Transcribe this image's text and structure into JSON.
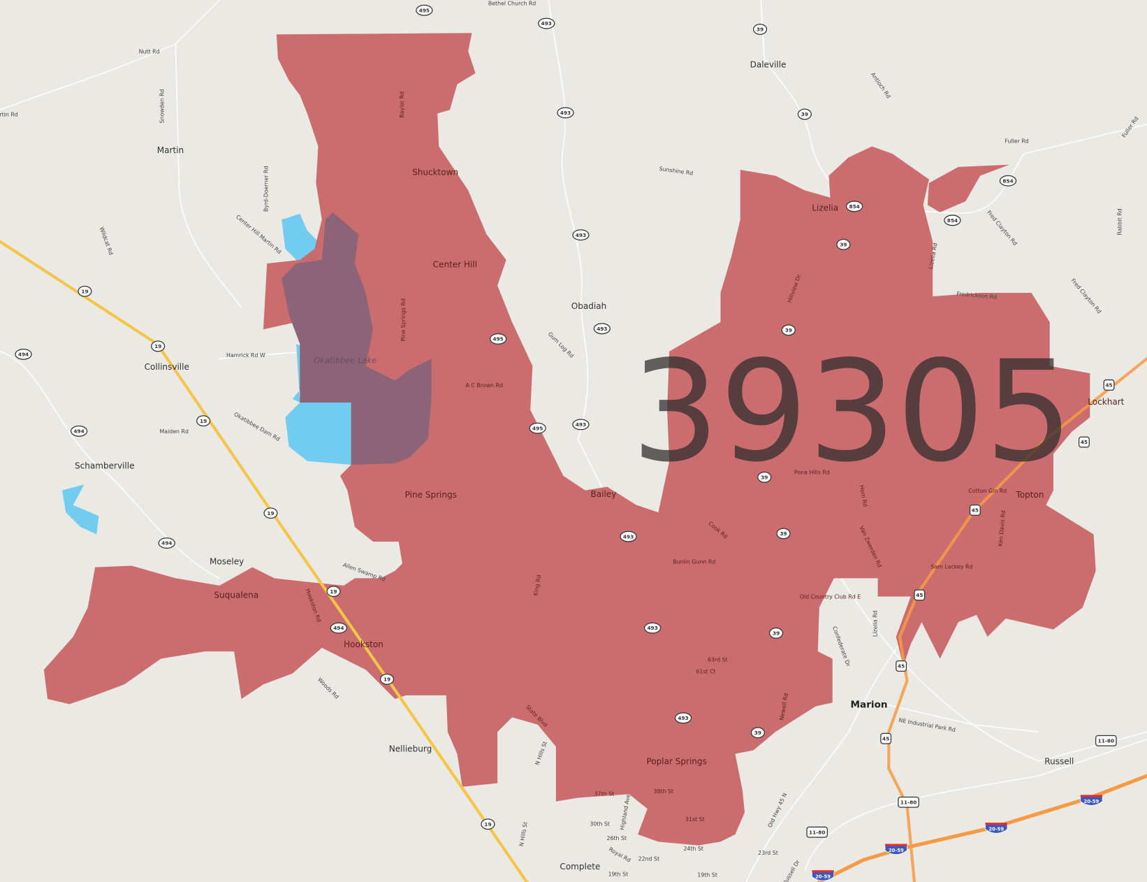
{
  "map": {
    "zip_code": "39305",
    "colors": {
      "background": "#ebe9e4",
      "zip_area": "#c9676a",
      "lake_overlay": "#8b6577",
      "water": "#72ccef",
      "state_highway": "#f5c54a",
      "interstate_route": "#f79a45",
      "road": "#ffffff"
    },
    "lake_label": "Okatibbee Lake",
    "places": [
      "Martin",
      "Daleville",
      "Shucktown",
      "Center Hill",
      "Lizelia",
      "Obadiah",
      "Collinsville",
      "Schamberville",
      "Pine Springs",
      "Bailey",
      "Lockhart",
      "Topton",
      "Moseley",
      "Suqualena",
      "Hookston",
      "Marion",
      "Nellieburg",
      "Poplar Springs",
      "Russell",
      "Complete"
    ],
    "roads": [
      "Nutt Rd",
      "Bethel Church Rd",
      "Snowden Rd",
      "rtin Rd",
      "Baylor Rd",
      "Byrd-Doerner Rd",
      "Center Hill Martin Rd",
      "Wildcat Rd",
      "Sunshine Rd",
      "Antioch Rd",
      "Fuller Rd",
      "Fuller Rd",
      "Fred Clayton Rd",
      "Rabbit Rd",
      "Fredrickson Rd",
      "Fred Clayton Rd",
      "Lizelia Rd",
      "Hillview Dr",
      "Pine Springs Rd",
      "Hamrick Rd W",
      "Gum Log Rd",
      "A C Brown Rd",
      "Maiden Rd",
      "Okatibbee Dam Rd",
      "Pona Hills Rd",
      "Cotton Gin Rd",
      "Horn Rd",
      "Ken Davis Rd",
      "Cook Rd",
      "Van Zwerden Rd",
      "Bunlin Gunn Rd",
      "Sam Lackey Rd",
      "Allen Swamp Rd",
      "King Rd",
      "Hookston Rd",
      "Old Country Club Rd E",
      "Lizelia Rd",
      "Confederate Dr",
      "63rd St",
      "61st Ct",
      "Woods Rd",
      "Newell Rd",
      "State Blvd",
      "NE Industrial Park Rd",
      "N Hills St",
      "37th St",
      "38th St",
      "Highland Ave",
      "30th St",
      "31st St",
      "26th St",
      "Old Hwy 45 N",
      "24th St",
      "23rd St",
      "22nd St",
      "Royal Rd",
      "N Hills St",
      "19th St",
      "19th St",
      "Russell Dr"
    ],
    "state_shields": [
      "495",
      "493",
      "39",
      "493",
      "39",
      "854",
      "854",
      "854",
      "493",
      "39",
      "19",
      "39",
      "495",
      "493",
      "19",
      "494",
      "19",
      "495",
      "39",
      "493",
      "494",
      "19",
      "494",
      "493",
      "39",
      "19",
      "494",
      "493",
      "39",
      "19",
      "493",
      "39",
      "19"
    ],
    "us_shields": [
      "45",
      "45",
      "45",
      "45",
      "45",
      "45",
      "11-80",
      "11-80",
      "11-80"
    ],
    "interstate_shields": [
      "20-59",
      "20-59",
      "20-59",
      "20-59"
    ]
  }
}
